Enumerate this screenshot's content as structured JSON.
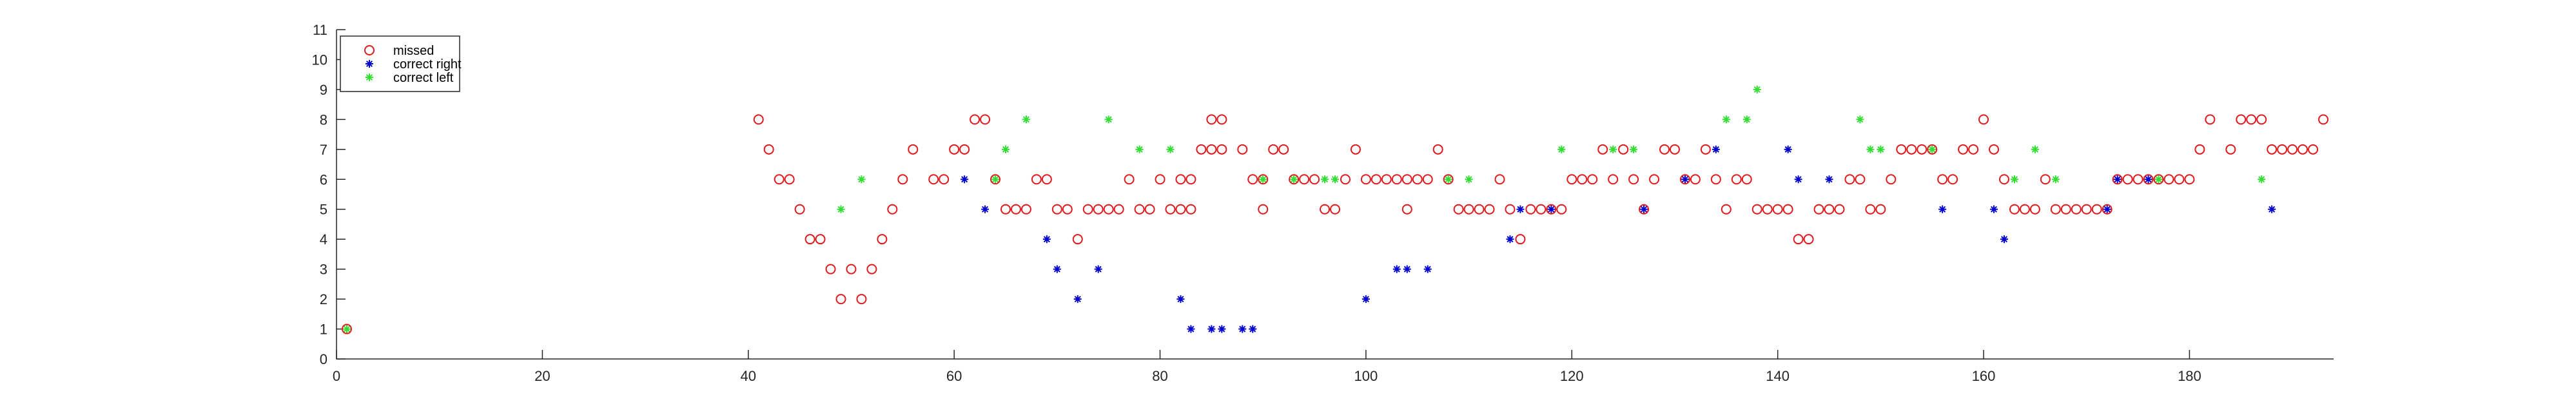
{
  "chart_data": {
    "type": "scatter",
    "title": "",
    "xlabel": "",
    "ylabel": "",
    "xlim": [
      0,
      194
    ],
    "ylim": [
      0,
      11
    ],
    "x_ticks": [
      "0",
      "20",
      "40",
      "60",
      "80",
      "100",
      "120",
      "140",
      "160",
      "180"
    ],
    "x_tick_values": [
      0,
      20,
      40,
      60,
      80,
      100,
      120,
      140,
      160,
      180
    ],
    "y_ticks": [
      "0",
      "1",
      "2",
      "3",
      "4",
      "5",
      "6",
      "7",
      "8",
      "9",
      "10",
      "11"
    ],
    "y_tick_values": [
      0,
      1,
      2,
      3,
      4,
      5,
      6,
      7,
      8,
      9,
      10,
      11
    ],
    "grid": false,
    "legend_position": "top-left",
    "series": [
      {
        "name": "missed",
        "marker": "circle",
        "color": "#e0191d",
        "points": [
          [
            1,
            1
          ],
          [
            41,
            8
          ],
          [
            42,
            7
          ],
          [
            43,
            6
          ],
          [
            44,
            6
          ],
          [
            45,
            5
          ],
          [
            46,
            4
          ],
          [
            47,
            4
          ],
          [
            48,
            3
          ],
          [
            49,
            2
          ],
          [
            50,
            3
          ],
          [
            51,
            2
          ],
          [
            52,
            3
          ],
          [
            53,
            4
          ],
          [
            54,
            5
          ],
          [
            55,
            6
          ],
          [
            56,
            7
          ],
          [
            58,
            6
          ],
          [
            59,
            6
          ],
          [
            60,
            7
          ],
          [
            61,
            7
          ],
          [
            62,
            8
          ],
          [
            63,
            8
          ],
          [
            64,
            6
          ],
          [
            65,
            5
          ],
          [
            66,
            5
          ],
          [
            67,
            5
          ],
          [
            68,
            6
          ],
          [
            69,
            6
          ],
          [
            70,
            5
          ],
          [
            71,
            5
          ],
          [
            72,
            4
          ],
          [
            73,
            5
          ],
          [
            74,
            5
          ],
          [
            75,
            5
          ],
          [
            76,
            5
          ],
          [
            77,
            6
          ],
          [
            78,
            5
          ],
          [
            79,
            5
          ],
          [
            80,
            6
          ],
          [
            81,
            5
          ],
          [
            82,
            6
          ],
          [
            82,
            5
          ],
          [
            83,
            6
          ],
          [
            83,
            5
          ],
          [
            84,
            7
          ],
          [
            85,
            7
          ],
          [
            85,
            8
          ],
          [
            86,
            8
          ],
          [
            86,
            7
          ],
          [
            88,
            7
          ],
          [
            89,
            6
          ],
          [
            90,
            6
          ],
          [
            90,
            5
          ],
          [
            91,
            7
          ],
          [
            92,
            7
          ],
          [
            93,
            6
          ],
          [
            94,
            6
          ],
          [
            95,
            6
          ],
          [
            96,
            5
          ],
          [
            97,
            5
          ],
          [
            98,
            6
          ],
          [
            99,
            7
          ],
          [
            100,
            6
          ],
          [
            101,
            6
          ],
          [
            102,
            6
          ],
          [
            103,
            6
          ],
          [
            104,
            6
          ],
          [
            104,
            5
          ],
          [
            105,
            6
          ],
          [
            106,
            6
          ],
          [
            107,
            7
          ],
          [
            108,
            6
          ],
          [
            109,
            5
          ],
          [
            110,
            5
          ],
          [
            111,
            5
          ],
          [
            112,
            5
          ],
          [
            113,
            6
          ],
          [
            114,
            5
          ],
          [
            115,
            4
          ],
          [
            116,
            5
          ],
          [
            117,
            5
          ],
          [
            118,
            5
          ],
          [
            119,
            5
          ],
          [
            120,
            6
          ],
          [
            121,
            6
          ],
          [
            122,
            6
          ],
          [
            123,
            7
          ],
          [
            124,
            6
          ],
          [
            125,
            7
          ],
          [
            126,
            6
          ],
          [
            127,
            5
          ],
          [
            128,
            6
          ],
          [
            129,
            7
          ],
          [
            130,
            7
          ],
          [
            131,
            6
          ],
          [
            132,
            6
          ],
          [
            133,
            7
          ],
          [
            134,
            6
          ],
          [
            135,
            5
          ],
          [
            136,
            6
          ],
          [
            137,
            6
          ],
          [
            138,
            5
          ],
          [
            139,
            5
          ],
          [
            140,
            5
          ],
          [
            141,
            5
          ],
          [
            142,
            4
          ],
          [
            143,
            4
          ],
          [
            144,
            5
          ],
          [
            145,
            5
          ],
          [
            146,
            5
          ],
          [
            147,
            6
          ],
          [
            148,
            6
          ],
          [
            149,
            5
          ],
          [
            150,
            5
          ],
          [
            151,
            6
          ],
          [
            152,
            7
          ],
          [
            153,
            7
          ],
          [
            154,
            7
          ],
          [
            155,
            7
          ],
          [
            156,
            6
          ],
          [
            157,
            6
          ],
          [
            158,
            7
          ],
          [
            159,
            7
          ],
          [
            160,
            8
          ],
          [
            161,
            7
          ],
          [
            162,
            6
          ],
          [
            163,
            5
          ],
          [
            164,
            5
          ],
          [
            165,
            5
          ],
          [
            166,
            6
          ],
          [
            167,
            5
          ],
          [
            168,
            5
          ],
          [
            169,
            5
          ],
          [
            170,
            5
          ],
          [
            171,
            5
          ],
          [
            172,
            5
          ],
          [
            173,
            6
          ],
          [
            174,
            6
          ],
          [
            175,
            6
          ],
          [
            176,
            6
          ],
          [
            177,
            6
          ],
          [
            178,
            6
          ],
          [
            179,
            6
          ],
          [
            180,
            6
          ],
          [
            181,
            7
          ],
          [
            182,
            8
          ],
          [
            184,
            7
          ],
          [
            185,
            8
          ],
          [
            186,
            8
          ],
          [
            187,
            8
          ],
          [
            188,
            7
          ],
          [
            189,
            7
          ],
          [
            190,
            7
          ],
          [
            191,
            7
          ],
          [
            192,
            7
          ],
          [
            193,
            8
          ]
        ]
      },
      {
        "name": "correct right",
        "marker": "asterisk",
        "color": "#0000cc",
        "points": [
          [
            61,
            6
          ],
          [
            63,
            5
          ],
          [
            69,
            4
          ],
          [
            70,
            3
          ],
          [
            72,
            2
          ],
          [
            74,
            3
          ],
          [
            82,
            2
          ],
          [
            83,
            1
          ],
          [
            85,
            1
          ],
          [
            86,
            1
          ],
          [
            88,
            1
          ],
          [
            89,
            1
          ],
          [
            100,
            2
          ],
          [
            103,
            3
          ],
          [
            104,
            3
          ],
          [
            106,
            3
          ],
          [
            114,
            4
          ],
          [
            115,
            5
          ],
          [
            118,
            5
          ],
          [
            127,
            5
          ],
          [
            131,
            6
          ],
          [
            134,
            7
          ],
          [
            141,
            7
          ],
          [
            142,
            6
          ],
          [
            145,
            6
          ],
          [
            156,
            5
          ],
          [
            161,
            5
          ],
          [
            162,
            4
          ],
          [
            172,
            5
          ],
          [
            173,
            6
          ],
          [
            176,
            6
          ],
          [
            188,
            5
          ]
        ]
      },
      {
        "name": "correct left",
        "marker": "asterisk",
        "color": "#33dd33",
        "points": [
          [
            1,
            1
          ],
          [
            49,
            5
          ],
          [
            51,
            6
          ],
          [
            64,
            6
          ],
          [
            65,
            7
          ],
          [
            67,
            8
          ],
          [
            75,
            8
          ],
          [
            78,
            7
          ],
          [
            81,
            7
          ],
          [
            90,
            6
          ],
          [
            93,
            6
          ],
          [
            96,
            6
          ],
          [
            97,
            6
          ],
          [
            108,
            6
          ],
          [
            110,
            6
          ],
          [
            119,
            7
          ],
          [
            124,
            7
          ],
          [
            126,
            7
          ],
          [
            135,
            8
          ],
          [
            137,
            8
          ],
          [
            138,
            9
          ],
          [
            148,
            8
          ],
          [
            149,
            7
          ],
          [
            150,
            7
          ],
          [
            155,
            7
          ],
          [
            163,
            6
          ],
          [
            165,
            7
          ],
          [
            167,
            6
          ],
          [
            177,
            6
          ],
          [
            187,
            6
          ]
        ]
      }
    ]
  }
}
